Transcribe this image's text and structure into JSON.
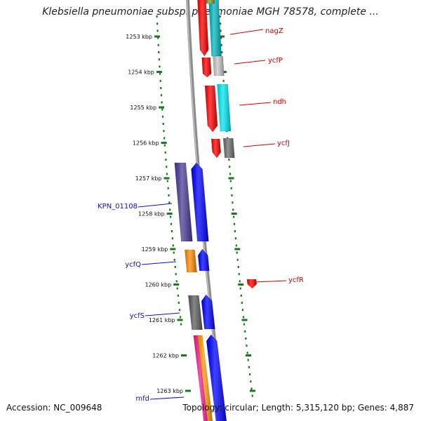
{
  "title": "Klebsiella pneumoniae subsp. pneumoniae MGH 78578, complete ...",
  "footer": {
    "accession": "Accession: NC_009648",
    "summary": "Topology: circular; Length: 5,315,120 bp; Genes: 4,887"
  },
  "colors": {
    "axis_line": "#8c8c8c",
    "tick_marks": "#1a7a1a",
    "forward_label": "#cc0000",
    "reverse_label": "#1010cc"
  },
  "ticks": [
    "1253 kbp",
    "1254 kbp",
    "1255 kbp",
    "1256 kbp",
    "1257 kbp",
    "1258 kbp",
    "1259 kbp",
    "1260 kbp",
    "1261 kbp",
    "1262 kbp",
    "1263 kbp"
  ],
  "genes": [
    {
      "name": "nagZ",
      "strand": "forward"
    },
    {
      "name": "ycfP",
      "strand": "forward"
    },
    {
      "name": "ndh",
      "strand": "forward"
    },
    {
      "name": "ycfJ",
      "strand": "forward"
    },
    {
      "name": "ycfR",
      "strand": "forward"
    },
    {
      "name": "KPN_01108",
      "strand": "reverse"
    },
    {
      "name": "ycfQ",
      "strand": "reverse"
    },
    {
      "name": "ycfS",
      "strand": "reverse"
    },
    {
      "name": "mfd",
      "strand": "reverse"
    }
  ]
}
